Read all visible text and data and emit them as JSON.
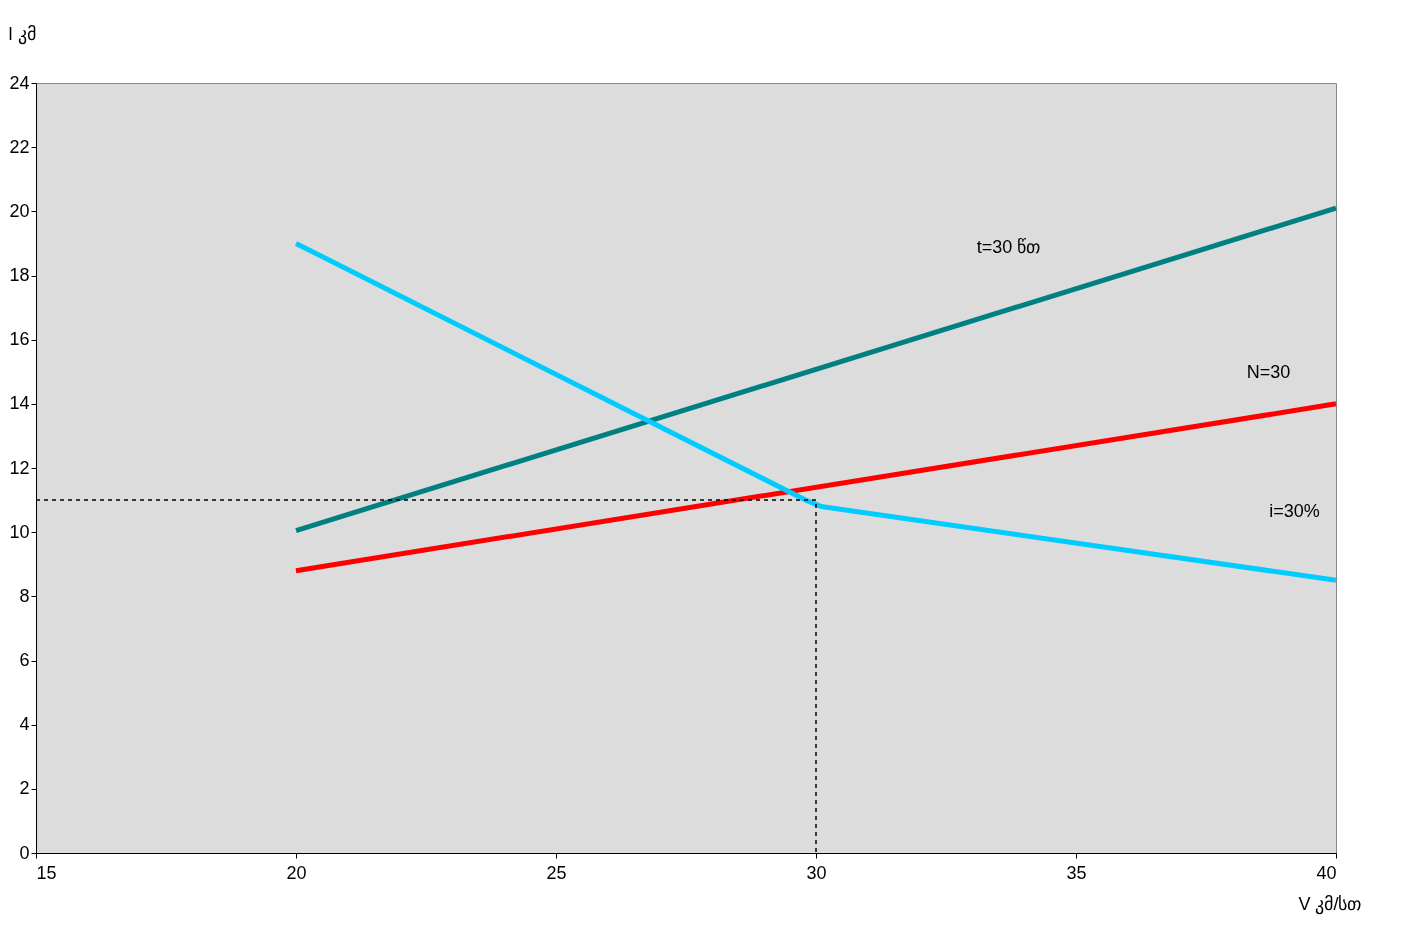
{
  "chart_data": {
    "type": "line",
    "xlabel": "V კმ/სთ",
    "ylabel": "l კმ",
    "xlim": [
      15,
      40
    ],
    "xticks": [
      15,
      20,
      25,
      30,
      35,
      40
    ],
    "ylim": [
      0,
      24
    ],
    "yticks": [
      0,
      2,
      4,
      6,
      8,
      10,
      12,
      14,
      16,
      18,
      20,
      22,
      24
    ],
    "marker": "none",
    "series": [
      {
        "name": "t=30 წთ",
        "color": "#008080",
        "x": [
          20,
          40
        ],
        "values": [
          10.05,
          20.1
        ],
        "line_style": "solid"
      },
      {
        "name": "N=30",
        "color": "#ff0000",
        "x": [
          20,
          40
        ],
        "values": [
          8.8,
          14
        ],
        "line_style": "solid"
      },
      {
        "name": "i=30%",
        "color": "#00ccff",
        "x": [
          20,
          29.8,
          30.1,
          40
        ],
        "values": [
          19,
          11,
          10.8,
          8.5
        ],
        "line_style": "solid"
      },
      {
        "color": "#000000",
        "x": [
          15,
          30,
          30
        ],
        "values": [
          11,
          11,
          0
        ],
        "line_style": "dashed"
      }
    ]
  }
}
